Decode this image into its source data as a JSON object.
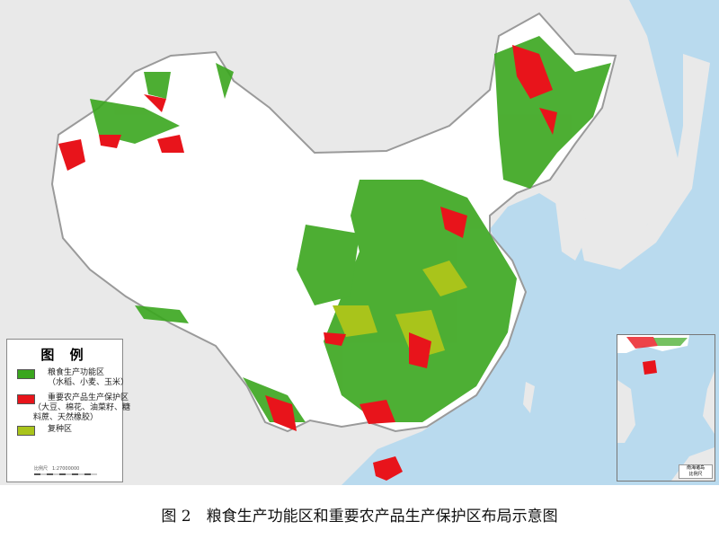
{
  "legend": {
    "title": "图 例",
    "items": [
      {
        "label": "粮食生产功能区",
        "sub": "（水稻、小麦、玉米）",
        "color": "#3aa61e"
      },
      {
        "label": "重要农产品生产保护区",
        "sub": "（大豆、棉花、油菜籽、糖料蔗、天然橡胶）",
        "color": "#e8141b"
      },
      {
        "label": "复种区",
        "sub": "",
        "color": "#a9c41b"
      }
    ],
    "scale": "比例尺　1:27000000"
  },
  "inset": {
    "title": "南海诸岛",
    "scale": "比例尺"
  },
  "colors": {
    "sea": "#b9daee",
    "land": "#e9e9e9",
    "china": "#ffffff",
    "border": "#999999"
  },
  "caption": "图 2　粮食生产功能区和重要农产品生产保护区布局示意图"
}
